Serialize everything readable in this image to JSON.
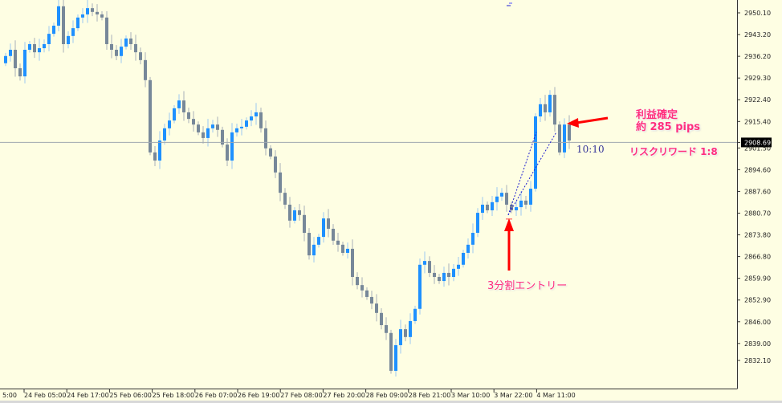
{
  "chart_data": {
    "type": "candlestick",
    "colors": {
      "background": "#fefee3",
      "bull": "#1e90ff",
      "bear": "#778899",
      "grid_line": "#a0a8b0",
      "annotation": "#ff2f7d",
      "arrow": "#ff0000",
      "trade_line": "#2020d0"
    },
    "ylim": [
      2832.1,
      2954.2
    ],
    "y_ticks": [
      "2950.10",
      "2943.20",
      "2936.20",
      "2929.30",
      "2922.40",
      "2915.40",
      "2908.69",
      "2901.50",
      "2894.60",
      "2887.60",
      "2880.70",
      "2873.80",
      "2866.80",
      "2859.90",
      "2852.90",
      "2846.00",
      "2839.00",
      "2832.10"
    ],
    "x_ticks": [
      "5:00",
      "24 Feb 05:00",
      "24 Feb 17:00",
      "25 Feb 06:00",
      "25 Feb 18:00",
      "26 Feb 07:00",
      "26 Feb 19:00",
      "27 Feb 08:00",
      "27 Feb 20:00",
      "28 Feb 09:00",
      "28 Feb 21:00",
      "3 Mar 10:00",
      "3 Mar 22:00",
      "4 Mar 11:00"
    ],
    "current_price": "2908.69",
    "first_open": 2934.0,
    "closes": [
      2936.3,
      2938.3,
      2932.4,
      2929.8,
      2938.3,
      2940.1,
      2937.5,
      2938.8,
      2940.1,
      2943.4,
      2946.0,
      2952.2,
      2940.1,
      2942.7,
      2945.2,
      2948.6,
      2949.6,
      2951.6,
      2950.4,
      2949.6,
      2948.6,
      2940.1,
      2938.3,
      2936.3,
      2939.3,
      2941.9,
      2940.1,
      2937.5,
      2935.0,
      2928.6,
      2905.5,
      2902.9,
      2909.3,
      2913.2,
      2915.7,
      2919.6,
      2922.1,
      2918.3,
      2916.2,
      2914.4,
      2911.9,
      2910.1,
      2913.2,
      2914.4,
      2912.7,
      2908.0,
      2902.9,
      2911.9,
      2913.2,
      2913.7,
      2915.7,
      2917.0,
      2918.3,
      2913.2,
      2906.8,
      2904.2,
      2899.1,
      2892.6,
      2888.8,
      2883.7,
      2887.0,
      2885.5,
      2879.8,
      2872.6,
      2876.0,
      2878.5,
      2884.4,
      2881.1,
      2877.3,
      2876.0,
      2873.4,
      2874.7,
      2865.7,
      2863.1,
      2861.4,
      2859.3,
      2857.2,
      2854.2,
      2850.3,
      2847.8,
      2835.7,
      2843.9,
      2849.0,
      2846.5,
      2851.6,
      2855.5,
      2869.6,
      2870.8,
      2867.0,
      2865.7,
      2864.4,
      2867.0,
      2865.7,
      2868.3,
      2869.6,
      2873.4,
      2876.0,
      2879.8,
      2886.2,
      2888.8,
      2887.0,
      2889.6,
      2891.4,
      2892.6,
      2888.8,
      2887.0,
      2888.0,
      2890.1,
      2888.8,
      2893.9,
      2917.0,
      2920.9,
      2918.3,
      2923.9,
      2914.4,
      2905.5,
      2914.4,
      2909.3
    ],
    "annotations": {
      "profit_line1": "利益確定",
      "profit_line2": "約 285 pips",
      "risk_reward": "リスクリワード 1:8",
      "entry": "3分割エントリー",
      "timer": "10:10"
    }
  }
}
